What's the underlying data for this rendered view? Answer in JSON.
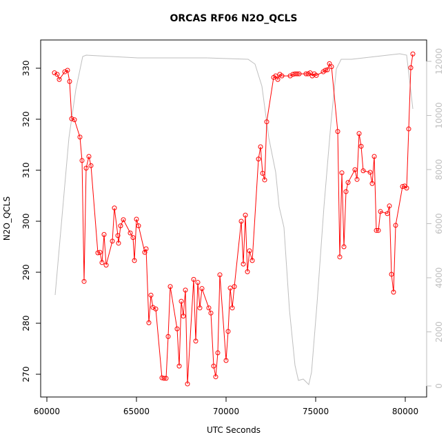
{
  "chart_data": {
    "type": "line",
    "title": "ORCAS RF06 N2O_QCLS",
    "xlabel": "UTC Seconds",
    "ylabel": "N2O_QCLS",
    "xlim": [
      59654,
      81192
    ],
    "xticks": [
      60000,
      65000,
      70000,
      75000,
      80000
    ],
    "ylim": [
      265.54,
      335.54
    ],
    "yticks": [
      270,
      280,
      290,
      300,
      310,
      320,
      330
    ],
    "y2lim": [
      -408,
      12790
    ],
    "y2ticks": [
      0,
      2000,
      4000,
      6000,
      8000,
      10000,
      12000
    ],
    "grid": false,
    "series": [
      {
        "name": "N2O_QCLS",
        "color": "#ff0000",
        "markers": true,
        "x": [
          60423,
          60577,
          60692,
          61000,
          61154,
          61269,
          61385,
          61538,
          61846,
          61962,
          62077,
          62192,
          62346,
          62462,
          62846,
          62962,
          63077,
          63192,
          63308,
          63654,
          63769,
          63962,
          64000,
          64115,
          64269,
          64654,
          64808,
          64885,
          65000,
          65115,
          65462,
          65538,
          65692,
          65808,
          65923,
          66077,
          66423,
          66538,
          66654,
          66769,
          66885,
          67269,
          67385,
          67500,
          67615,
          67731,
          67846,
          68192,
          68308,
          68423,
          68538,
          68654,
          69038,
          69154,
          69308,
          69423,
          69538,
          69654,
          70000,
          70115,
          70231,
          70346,
          70462,
          70846,
          70962,
          71077,
          71192,
          71308,
          71462,
          71808,
          71923,
          72038,
          72154,
          72269,
          72654,
          72769,
          72885,
          73000,
          73115,
          73577,
          73731,
          73846,
          73962,
          74077,
          74462,
          74577,
          74692,
          74808,
          74923,
          75038,
          75423,
          75538,
          75654,
          75769,
          75885,
          76231,
          76346,
          76462,
          76577,
          76692,
          76808,
          77192,
          77308,
          77423,
          77538,
          77654,
          78038,
          78154,
          78269,
          78385,
          78500,
          78615,
          79000,
          79115,
          79231,
          79346,
          79462,
          79846,
          79962,
          80077,
          80192,
          80308,
          80423
        ],
        "values": [
          329.1,
          328.8,
          327.8,
          329.3,
          329.6,
          327.4,
          320.1,
          319.9,
          316.5,
          311.9,
          288.2,
          310.4,
          312.7,
          310.9,
          293.8,
          293.9,
          291.9,
          297.4,
          291.4,
          296.1,
          302.6,
          297.2,
          295.7,
          299.1,
          300.3,
          297.7,
          296.8,
          292.3,
          300.4,
          299.1,
          293.9,
          294.6,
          280.1,
          285.5,
          283.1,
          282.8,
          269.3,
          269.2,
          269.2,
          277.4,
          287.2,
          278.9,
          271.6,
          284.3,
          281.4,
          286.5,
          268.1,
          288.6,
          276.5,
          288,
          283,
          286.8,
          283,
          282,
          271.6,
          269.5,
          274.2,
          289.5,
          272.7,
          278.4,
          286.9,
          283,
          287.2,
          300,
          291.6,
          301.2,
          290.1,
          294.2,
          292.3,
          312.2,
          314.6,
          309.4,
          308.1,
          319.5,
          328.2,
          328.5,
          327.8,
          328.8,
          328.5,
          328.5,
          328.8,
          328.9,
          328.9,
          328.9,
          328.9,
          328.9,
          329.1,
          328.5,
          328.9,
          328.6,
          329.3,
          329.6,
          329.7,
          330.9,
          330.3,
          317.6,
          293,
          309.5,
          295,
          305.8,
          307.6,
          310.1,
          308.2,
          317.2,
          314.7,
          309.9,
          309.6,
          307.4,
          312.7,
          298.2,
          298.2,
          301.9,
          301.5,
          303,
          289.6,
          286.1,
          299.2,
          306.8,
          306.9,
          306.5,
          318.1,
          330.1,
          332.8
        ]
      },
      {
        "color": "#bebebe",
        "axis": "y2",
        "markers": false,
        "x": [
          60462,
          61231,
          61615,
          62000,
          62192,
          65077,
          68923,
          71231,
          71615,
          72000,
          72385,
          72769,
          72962,
          73231,
          73538,
          73846,
          74038,
          74308,
          74615,
          74769,
          75077,
          75462,
          75846,
          76154,
          76423,
          77000,
          79692,
          80077,
          80423
        ],
        "values": [
          3363,
          9172,
          10955,
          12178,
          12229,
          12127,
          12127,
          12076,
          11898,
          11083,
          9172,
          7898,
          6624,
          5860,
          2803,
          764,
          204,
          255,
          51,
          510,
          3057,
          6624,
          9682,
          11720,
          12076,
          12076,
          12280,
          12229,
          10242
        ]
      }
    ]
  }
}
